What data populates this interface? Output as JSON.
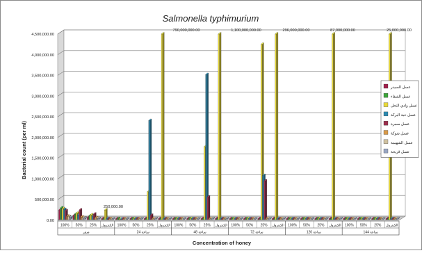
{
  "chart_data": {
    "type": "bar",
    "title": "Salmonella typhimurium",
    "xlabel": "Concentration of honey",
    "ylabel": "Bacterial count (per ml)",
    "ylim": [
      0,
      4500000
    ],
    "yticks": [
      "0.00",
      "500,000.00",
      "1,000,000.00",
      "1,500,000.00",
      "2,000,000.00",
      "2,500,000.00",
      "3,000,000.00",
      "3,500,000.00",
      "4,000,000.00",
      "4,500,000.00"
    ],
    "grid": true,
    "legend_position": "right",
    "concentrations": [
      "100%",
      "50%",
      "25%",
      "الكنترول"
    ],
    "time_groups": [
      "صفر",
      "24 ساعة",
      "48 ساعة",
      "72 ساعة",
      "120 ساعة",
      "144 ساعة"
    ],
    "series": [
      {
        "name": "عسل السيدر",
        "color": "#a0204c",
        "values": [
          [
            250000,
            120000,
            70000,
            0
          ],
          [
            0,
            0,
            0,
            0
          ],
          [
            0,
            0,
            0,
            0
          ],
          [
            0,
            0,
            0,
            0
          ],
          [
            0,
            0,
            0,
            0
          ],
          [
            0,
            0,
            0,
            0
          ]
        ]
      },
      {
        "name": "عسل الشفاء",
        "color": "#3da63a",
        "values": [
          [
            300000,
            150000,
            110000,
            0
          ],
          [
            40000,
            0,
            0,
            0
          ],
          [
            0,
            0,
            0,
            0
          ],
          [
            0,
            0,
            0,
            0
          ],
          [
            0,
            0,
            0,
            0
          ],
          [
            0,
            0,
            0,
            0
          ]
        ]
      },
      {
        "name": "عسل وادي النحل",
        "color": "#e8d93a",
        "values": [
          [
            280000,
            170000,
            130000,
            250000
          ],
          [
            20000,
            0,
            690000,
            4500000
          ],
          [
            0,
            0,
            1780000,
            4500000
          ],
          [
            0,
            0,
            4250000,
            4500000
          ],
          [
            0,
            0,
            0,
            4500000
          ],
          [
            0,
            0,
            0,
            4500000
          ]
        ]
      },
      {
        "name": "عسل حبة البركة",
        "color": "#2e8ab0",
        "values": [
          [
            260000,
            130000,
            90000,
            0
          ],
          [
            30000,
            0,
            2410000,
            0
          ],
          [
            0,
            0,
            3520000,
            0
          ],
          [
            0,
            0,
            1080000,
            0
          ],
          [
            0,
            0,
            0,
            0
          ],
          [
            0,
            0,
            0,
            0
          ]
        ]
      },
      {
        "name": "عسل سمرة",
        "color": "#9b2f4d",
        "values": [
          [
            230000,
            250000,
            150000,
            0
          ],
          [
            0,
            0,
            120000,
            0
          ],
          [
            0,
            0,
            560000,
            0
          ],
          [
            0,
            0,
            950000,
            0
          ],
          [
            0,
            0,
            0,
            0
          ],
          [
            0,
            0,
            0,
            0
          ]
        ]
      },
      {
        "name": "عسل شوكة",
        "color": "#d89a4a",
        "values": [
          [
            100000,
            80000,
            60000,
            0
          ],
          [
            0,
            0,
            0,
            0
          ],
          [
            0,
            0,
            0,
            0
          ],
          [
            0,
            0,
            0,
            0
          ],
          [
            0,
            0,
            0,
            0
          ],
          [
            0,
            0,
            0,
            0
          ]
        ]
      },
      {
        "name": "عسل الشهيمة",
        "color": "#cfc1a0",
        "values": [
          [
            90000,
            60000,
            50000,
            0
          ],
          [
            0,
            0,
            0,
            0
          ],
          [
            0,
            0,
            0,
            0
          ],
          [
            0,
            0,
            0,
            0
          ],
          [
            0,
            0,
            0,
            0
          ],
          [
            0,
            0,
            0,
            0
          ]
        ]
      },
      {
        "name": "عسل قريحة",
        "color": "#9aa7c4",
        "values": [
          [
            70000,
            50000,
            40000,
            0
          ],
          [
            0,
            0,
            0,
            0
          ],
          [
            0,
            0,
            0,
            0
          ],
          [
            0,
            0,
            0,
            0
          ],
          [
            0,
            0,
            0,
            0
          ],
          [
            0,
            0,
            0,
            0
          ]
        ]
      }
    ],
    "annotations": [
      "250,000.00",
      "790,000,000.00",
      "1,100,000,000.00",
      "296,000,000.00",
      "87,000,000.00",
      "25,000,000.00"
    ]
  }
}
